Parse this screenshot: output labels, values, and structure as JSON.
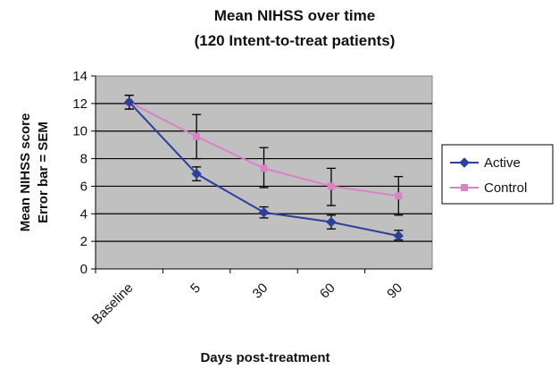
{
  "chart_data": {
    "type": "line",
    "title": "Mean NIHSS over time",
    "subtitle": "(120 Intent-to-treat patients)",
    "xlabel": "Days post-treatment",
    "ylabel": "Mean NIHSS score",
    "ylabel2": "Error bar = SEM",
    "categories": [
      "Baseline",
      "5",
      "30",
      "60",
      "90"
    ],
    "ylim": [
      0,
      14
    ],
    "yticks": [
      "0",
      "2",
      "4",
      "6",
      "8",
      "10",
      "12",
      "14"
    ],
    "grid": true,
    "legend_position": "right",
    "series": [
      {
        "name": "Active",
        "color": "#2b3f9e",
        "marker": "diamond",
        "values": [
          12.1,
          6.9,
          4.1,
          3.4,
          2.4
        ],
        "err_low": [
          11.6,
          6.4,
          3.7,
          2.9,
          2.1
        ],
        "err_high": [
          12.6,
          7.4,
          4.5,
          3.9,
          2.8
        ]
      },
      {
        "name": "Control",
        "color": "#d982c8",
        "marker": "square",
        "values": [
          12.1,
          9.6,
          7.3,
          6.0,
          5.3
        ],
        "err_low": [
          11.6,
          8.0,
          5.9,
          4.6,
          3.9
        ],
        "err_high": [
          12.6,
          11.2,
          8.8,
          7.3,
          6.7
        ]
      }
    ]
  }
}
